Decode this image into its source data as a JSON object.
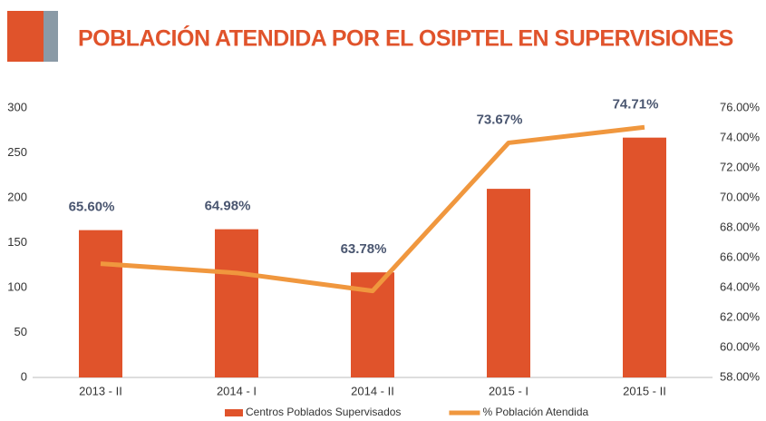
{
  "chart_data": {
    "type": "bar",
    "title": "POBLACIÓN ATENDIDA POR EL OSIPTEL EN SUPERVISIONES",
    "categories": [
      "2013 - II",
      "2014 - I",
      "2014 - II",
      "2015 - I",
      "2015 - II"
    ],
    "series": [
      {
        "name": "Centros Poblados Supervisados",
        "type": "bar",
        "color": "#e0532b",
        "values": [
          164,
          165,
          117,
          210,
          267
        ]
      },
      {
        "name": "% Población Atendida",
        "type": "line",
        "axis": "y2",
        "color": "#f0973e",
        "values": [
          65.6,
          64.98,
          63.78,
          73.67,
          74.71
        ],
        "value_labels": [
          "65.60%",
          "64.98%",
          "63.78%",
          "73.67%",
          "74.71%"
        ]
      }
    ],
    "ylim": [
      0,
      300
    ],
    "yticks": [
      0,
      50,
      100,
      150,
      200,
      250,
      300
    ],
    "y2lim": [
      58,
      76
    ],
    "y2ticks": [
      {
        "value": 58,
        "label": "58.00%"
      },
      {
        "value": 60,
        "label": "60.00%"
      },
      {
        "value": 62,
        "label": "62.00%"
      },
      {
        "value": 64,
        "label": "64.00%"
      },
      {
        "value": 66,
        "label": "66.00%"
      },
      {
        "value": 68,
        "label": "68.00%"
      },
      {
        "value": 70,
        "label": "70.00%"
      },
      {
        "value": 72,
        "label": "72.00%"
      },
      {
        "value": 74,
        "label": "74.00%"
      },
      {
        "value": 76,
        "label": "76.00%"
      }
    ],
    "legend": "bottom"
  }
}
